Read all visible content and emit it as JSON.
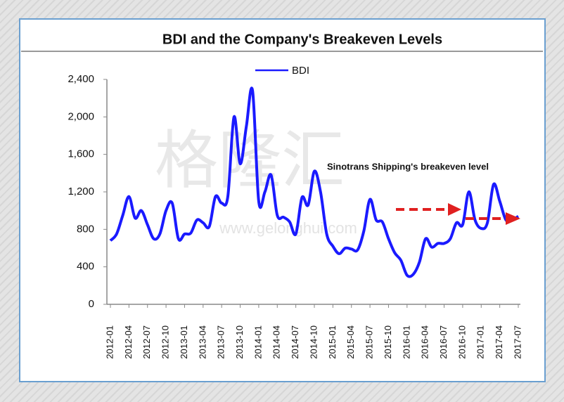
{
  "chart_data": {
    "type": "line",
    "title": "BDI and the Company's Breakeven Levels",
    "annotation": "Sinotrans Shipping's breakeven level",
    "watermark": "格隆汇",
    "watermark_url": "www.gelonghui.com",
    "legend": "top",
    "categories": [
      "2012-01",
      null,
      null,
      "2012-04",
      null,
      null,
      "2012-07",
      null,
      null,
      "2012-10",
      null,
      null,
      "2013-01",
      null,
      null,
      "2013-04",
      null,
      null,
      "2013-07",
      null,
      null,
      "2013-10",
      null,
      null,
      "2014-01",
      null,
      null,
      "2014-04",
      null,
      null,
      "2014-07",
      null,
      null,
      "2014-10",
      null,
      null,
      "2015-01",
      null,
      null,
      "2015-04",
      null,
      null,
      "2015-07",
      null,
      null,
      "2015-10",
      null,
      null,
      "2016-01",
      null,
      null,
      "2016-04",
      null,
      null,
      "2016-07",
      null,
      null,
      "2016-10",
      null,
      null,
      "2017-01",
      null,
      null,
      "2017-04",
      null,
      null,
      "2017-07"
    ],
    "series": [
      {
        "name": "BDI",
        "color": "#1a1aff",
        "values": [
          680,
          750,
          950,
          1150,
          920,
          1000,
          850,
          700,
          750,
          1000,
          1080,
          700,
          750,
          760,
          900,
          870,
          830,
          1150,
          1080,
          1150,
          2000,
          1500,
          1900,
          2280,
          1100,
          1200,
          1380,
          950,
          930,
          880,
          750,
          1140,
          1060,
          1420,
          1200,
          750,
          620,
          540,
          600,
          590,
          580,
          780,
          1120,
          900,
          880,
          700,
          550,
          470,
          310,
          320,
          450,
          700,
          610,
          650,
          650,
          700,
          870,
          850,
          1200,
          900,
          810,
          870,
          1280,
          1100,
          900,
          900,
          940
        ]
      }
    ],
    "ylim": [
      0,
      2400
    ],
    "yticks": [
      0,
      400,
      800,
      {
        "value": 1200,
        "label": "1,200"
      },
      {
        "value": 1600,
        "label": "1,600"
      },
      {
        "value": 2000,
        "label": "2,000"
      },
      {
        "value": 2400,
        "label": "2,400"
      }
    ],
    "grid": false
  }
}
